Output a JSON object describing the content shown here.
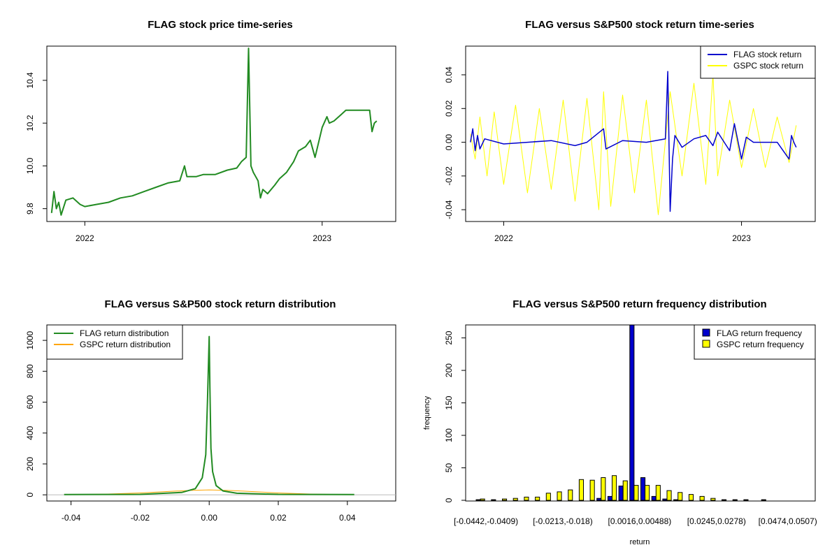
{
  "chart_data": [
    {
      "type": "line",
      "title": "FLAG stock price time-series",
      "xlabel": "",
      "ylabel": "",
      "xlim": [
        2021.84,
        2023.31
      ],
      "ylim": [
        9.74,
        10.56
      ],
      "xticks": [
        {
          "v": 2022.0,
          "label": "2022"
        },
        {
          "v": 2023.0,
          "label": "2023"
        }
      ],
      "yticks": [
        {
          "v": 9.8,
          "label": "9.8"
        },
        {
          "v": 10.0,
          "label": "10.0"
        },
        {
          "v": 10.2,
          "label": "10.2"
        },
        {
          "v": 10.4,
          "label": "10.4"
        }
      ],
      "series": [
        {
          "name": "FLAG price",
          "color": "#228B22",
          "x": [
            2021.86,
            2021.87,
            2021.88,
            2021.89,
            2021.9,
            2021.92,
            2021.95,
            2021.98,
            2022.0,
            2022.05,
            2022.1,
            2022.15,
            2022.2,
            2022.25,
            2022.3,
            2022.35,
            2022.4,
            2022.42,
            2022.43,
            2022.47,
            2022.5,
            2022.55,
            2022.6,
            2022.64,
            2022.66,
            2022.68,
            2022.69,
            2022.7,
            2022.71,
            2022.72,
            2022.73,
            2022.74,
            2022.75,
            2022.76,
            2022.77,
            2022.8,
            2022.82,
            2022.85,
            2022.88,
            2022.9,
            2022.93,
            2022.95,
            2022.97,
            2023.0,
            2023.02,
            2023.03,
            2023.05,
            2023.08,
            2023.1,
            2023.13,
            2023.16,
            2023.2,
            2023.21,
            2023.22,
            2023.23
          ],
          "y": [
            9.78,
            9.88,
            9.8,
            9.83,
            9.77,
            9.84,
            9.85,
            9.82,
            9.81,
            9.82,
            9.83,
            9.85,
            9.86,
            9.88,
            9.9,
            9.92,
            9.93,
            10.0,
            9.95,
            9.95,
            9.96,
            9.96,
            9.98,
            9.99,
            10.02,
            10.04,
            10.55,
            10.0,
            9.97,
            9.95,
            9.93,
            9.85,
            9.89,
            9.88,
            9.87,
            9.91,
            9.94,
            9.97,
            10.02,
            10.07,
            10.09,
            10.12,
            10.04,
            10.18,
            10.23,
            10.2,
            10.21,
            10.24,
            10.26,
            10.26,
            10.26,
            10.26,
            10.16,
            10.2,
            10.21
          ]
        }
      ]
    },
    {
      "type": "line",
      "title": "FLAG versus S&P500 stock return time-series",
      "xlabel": "",
      "ylabel": "",
      "xlim": [
        2021.84,
        2023.31
      ],
      "ylim": [
        -0.047,
        0.057
      ],
      "xticks": [
        {
          "v": 2022.0,
          "label": "2022"
        },
        {
          "v": 2023.0,
          "label": "2023"
        }
      ],
      "yticks": [
        {
          "v": -0.04,
          "label": "-0.04"
        },
        {
          "v": -0.02,
          "label": "-0.02"
        },
        {
          "v": 0.0,
          "label": "0.00"
        },
        {
          "v": 0.02,
          "label": "0.02"
        },
        {
          "v": 0.04,
          "label": "0.04"
        }
      ],
      "legend_position": "top-right",
      "series": [
        {
          "name": "FLAG stock return",
          "color": "#0000CD",
          "x": [
            2021.86,
            2021.87,
            2021.88,
            2021.89,
            2021.9,
            2021.92,
            2022.0,
            2022.1,
            2022.2,
            2022.3,
            2022.35,
            2022.42,
            2022.43,
            2022.5,
            2022.6,
            2022.68,
            2022.69,
            2022.7,
            2022.71,
            2022.72,
            2022.75,
            2022.8,
            2022.85,
            2022.88,
            2022.9,
            2022.95,
            2022.97,
            2023.0,
            2023.02,
            2023.05,
            2023.1,
            2023.15,
            2023.2,
            2023.21,
            2023.22,
            2023.23
          ],
          "y": [
            0.0,
            0.008,
            -0.005,
            0.004,
            -0.004,
            0.002,
            -0.001,
            0.0,
            0.001,
            -0.002,
            0.0,
            0.008,
            -0.004,
            0.001,
            0.0,
            0.002,
            0.042,
            -0.041,
            -0.01,
            0.004,
            -0.003,
            0.002,
            0.004,
            -0.002,
            0.006,
            -0.005,
            0.011,
            -0.01,
            0.003,
            0.0,
            0.0,
            0.0,
            -0.01,
            0.004,
            0.0,
            -0.003
          ]
        },
        {
          "name": "GSPC stock return",
          "color": "#FFFF00",
          "x": [
            2021.86,
            2021.88,
            2021.9,
            2021.93,
            2021.96,
            2022.0,
            2022.05,
            2022.1,
            2022.15,
            2022.2,
            2022.25,
            2022.3,
            2022.35,
            2022.4,
            2022.42,
            2022.45,
            2022.5,
            2022.55,
            2022.6,
            2022.65,
            2022.7,
            2022.75,
            2022.8,
            2022.85,
            2022.88,
            2022.9,
            2022.95,
            2023.0,
            2023.05,
            2023.1,
            2023.15,
            2023.2,
            2023.23
          ],
          "y": [
            0.005,
            -0.01,
            0.015,
            -0.02,
            0.018,
            -0.025,
            0.022,
            -0.03,
            0.02,
            -0.028,
            0.025,
            -0.035,
            0.026,
            -0.04,
            0.03,
            -0.038,
            0.028,
            -0.03,
            0.025,
            -0.043,
            0.03,
            -0.02,
            0.035,
            -0.025,
            0.04,
            -0.02,
            0.025,
            -0.015,
            0.02,
            -0.015,
            0.015,
            -0.012,
            0.01
          ]
        }
      ]
    },
    {
      "type": "line",
      "title": "FLAG versus S&P500 stock return distribution",
      "xlabel": "",
      "ylabel": "",
      "xlim": [
        -0.047,
        0.054
      ],
      "ylim": [
        -40,
        1100
      ],
      "xticks": [
        {
          "v": -0.04,
          "label": "-0.04"
        },
        {
          "v": -0.02,
          "label": "-0.02"
        },
        {
          "v": 0.0,
          "label": "0.00"
        },
        {
          "v": 0.02,
          "label": "0.02"
        },
        {
          "v": 0.04,
          "label": "0.04"
        }
      ],
      "yticks": [
        {
          "v": 0,
          "label": "0"
        },
        {
          "v": 200,
          "label": "200"
        },
        {
          "v": 400,
          "label": "400"
        },
        {
          "v": 600,
          "label": "600"
        },
        {
          "v": 800,
          "label": "800"
        },
        {
          "v": 1000,
          "label": "1000"
        }
      ],
      "legend_position": "top-left",
      "series": [
        {
          "name": "FLAG return distribution",
          "color": "#228B22",
          "x": [
            -0.042,
            -0.02,
            -0.008,
            -0.004,
            -0.002,
            -0.001,
            -0.0005,
            0.0,
            0.0002,
            0.0005,
            0.001,
            0.002,
            0.004,
            0.008,
            0.02,
            0.042
          ],
          "y": [
            2,
            3,
            15,
            40,
            110,
            260,
            600,
            1025,
            700,
            300,
            150,
            60,
            25,
            10,
            3,
            2
          ]
        },
        {
          "name": "GSPC return distribution",
          "color": "#FFA500",
          "x": [
            -0.04,
            -0.03,
            -0.02,
            -0.01,
            -0.005,
            0.0,
            0.005,
            0.01,
            0.02,
            0.03,
            0.04
          ],
          "y": [
            1,
            5,
            12,
            24,
            29,
            32,
            29,
            24,
            12,
            5,
            1
          ]
        }
      ]
    },
    {
      "type": "bar",
      "title": "FLAG versus S&P500 return frequency distribution",
      "xlabel": "return",
      "ylabel": "frequency",
      "ylim": [
        0,
        270
      ],
      "yticks": [
        {
          "v": 0,
          "label": "0"
        },
        {
          "v": 50,
          "label": "50"
        },
        {
          "v": 100,
          "label": "100"
        },
        {
          "v": 150,
          "label": "150"
        },
        {
          "v": 200,
          "label": "200"
        },
        {
          "v": 250,
          "label": "250"
        }
      ],
      "xtick_labels": [
        {
          "index": 0,
          "label": "[-0.0442,-0.0409)"
        },
        {
          "index": 7,
          "label": "[-0.0213,-0.018)"
        },
        {
          "index": 14,
          "label": "[0.0016,0.00488)"
        },
        {
          "index": 21,
          "label": "[0.0245,0.0278)"
        },
        {
          "index": 28,
          "label": "[0.0474,0.0507)"
        }
      ],
      "legend_position": "top-right",
      "category_count": 29,
      "series": [
        {
          "name": "FLAG return frequency",
          "color": "#0000CD",
          "values": [
            1,
            0,
            0,
            0,
            0,
            0,
            0,
            0,
            0,
            0,
            0,
            3,
            6,
            22,
            270,
            35,
            6,
            2,
            1,
            0,
            0,
            0,
            0,
            0,
            0,
            0,
            1,
            0,
            0
          ]
        },
        {
          "name": "GSPC return frequency",
          "color": "#FFFF00",
          "values": [
            2,
            1,
            2,
            3,
            5,
            5,
            11,
            13,
            16,
            32,
            31,
            35,
            38,
            30,
            23,
            23,
            23,
            15,
            12,
            9,
            6,
            3,
            1,
            1,
            1,
            0,
            0,
            0,
            0
          ]
        }
      ]
    }
  ]
}
